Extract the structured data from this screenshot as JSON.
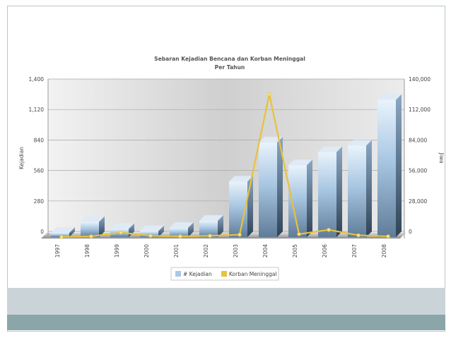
{
  "chart_data": {
    "type": "bar",
    "title": "Sebaran Kejadian Bencana dan Korban Meninggal",
    "subtitle": "Per Tahun",
    "categories": [
      "1997",
      "1998",
      "1999",
      "2000",
      "2001",
      "2002",
      "2003",
      "2004",
      "2005",
      "2006",
      "2007",
      "2008"
    ],
    "series": [
      {
        "name": "# Kejadian",
        "type": "bar",
        "axis": "left",
        "color": "#a9c8e4",
        "values": [
          10,
          140,
          75,
          55,
          85,
          150,
          510,
          870,
          660,
          780,
          840,
          1260
        ]
      },
      {
        "name": "Korban Meninggal",
        "type": "line",
        "axis": "right",
        "color": "#e8c23a",
        "values": [
          -5000,
          -4500,
          -1000,
          -4000,
          -4500,
          -4000,
          -3000,
          126000,
          -2500,
          1500,
          -3500,
          -4500
        ]
      }
    ],
    "ylabel": "Kejadian",
    "y2label": "Jiwa",
    "ylim": [
      0,
      1400
    ],
    "y2lim": [
      0,
      140000
    ],
    "yticks": [
      "0",
      "280",
      "560",
      "840",
      "1,120",
      "1,400"
    ],
    "y2ticks": [
      "0",
      "28,000",
      "56,000",
      "84,000",
      "112,000",
      "140,000"
    ],
    "legend": "bottom",
    "grid": true
  }
}
